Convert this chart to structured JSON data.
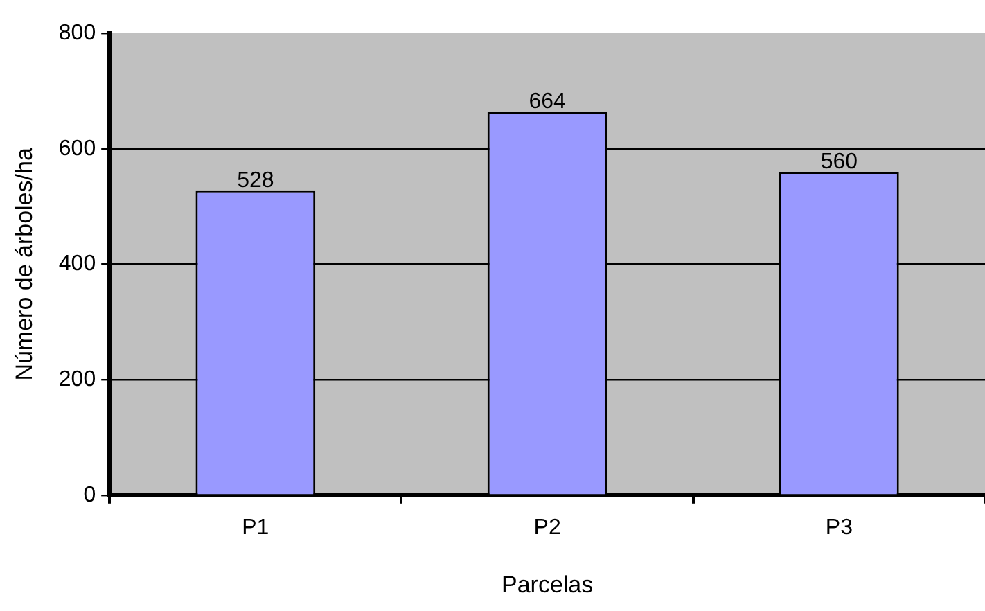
{
  "chart_data": {
    "type": "bar",
    "xlabel": "Parcelas",
    "ylabel": "Número de árboles/ha",
    "categories": [
      "P1",
      "P2",
      "P3"
    ],
    "values": [
      528,
      664,
      560
    ],
    "color": "#9999ff",
    "ylim": [
      0,
      800
    ],
    "yticks": [
      0,
      200,
      400,
      600,
      800
    ],
    "grid": "y",
    "legend": false,
    "data_labels": true
  }
}
